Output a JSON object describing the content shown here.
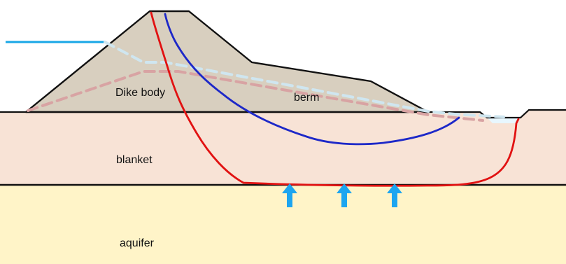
{
  "labels": {
    "dike_body": "Dike body",
    "berm": "berm",
    "blanket": "blanket",
    "aquifer": "aquifer"
  },
  "colors": {
    "dike_fill": "#D8CFBF",
    "blanket_fill": "#F8E3D6",
    "aquifer_fill": "#FFF4C8",
    "water_line": "#19A7E6",
    "phreatic_dashed": "#CFE6F0",
    "seepage_dashed": "#D8A3A3",
    "red_line": "#E11212",
    "blue_line": "#1D28C8",
    "arrow": "#1CA5F0",
    "outline": "#111111"
  },
  "icons": {
    "upward_seepage": [
      "arrow-up-icon",
      "arrow-up-icon",
      "arrow-up-icon"
    ]
  }
}
